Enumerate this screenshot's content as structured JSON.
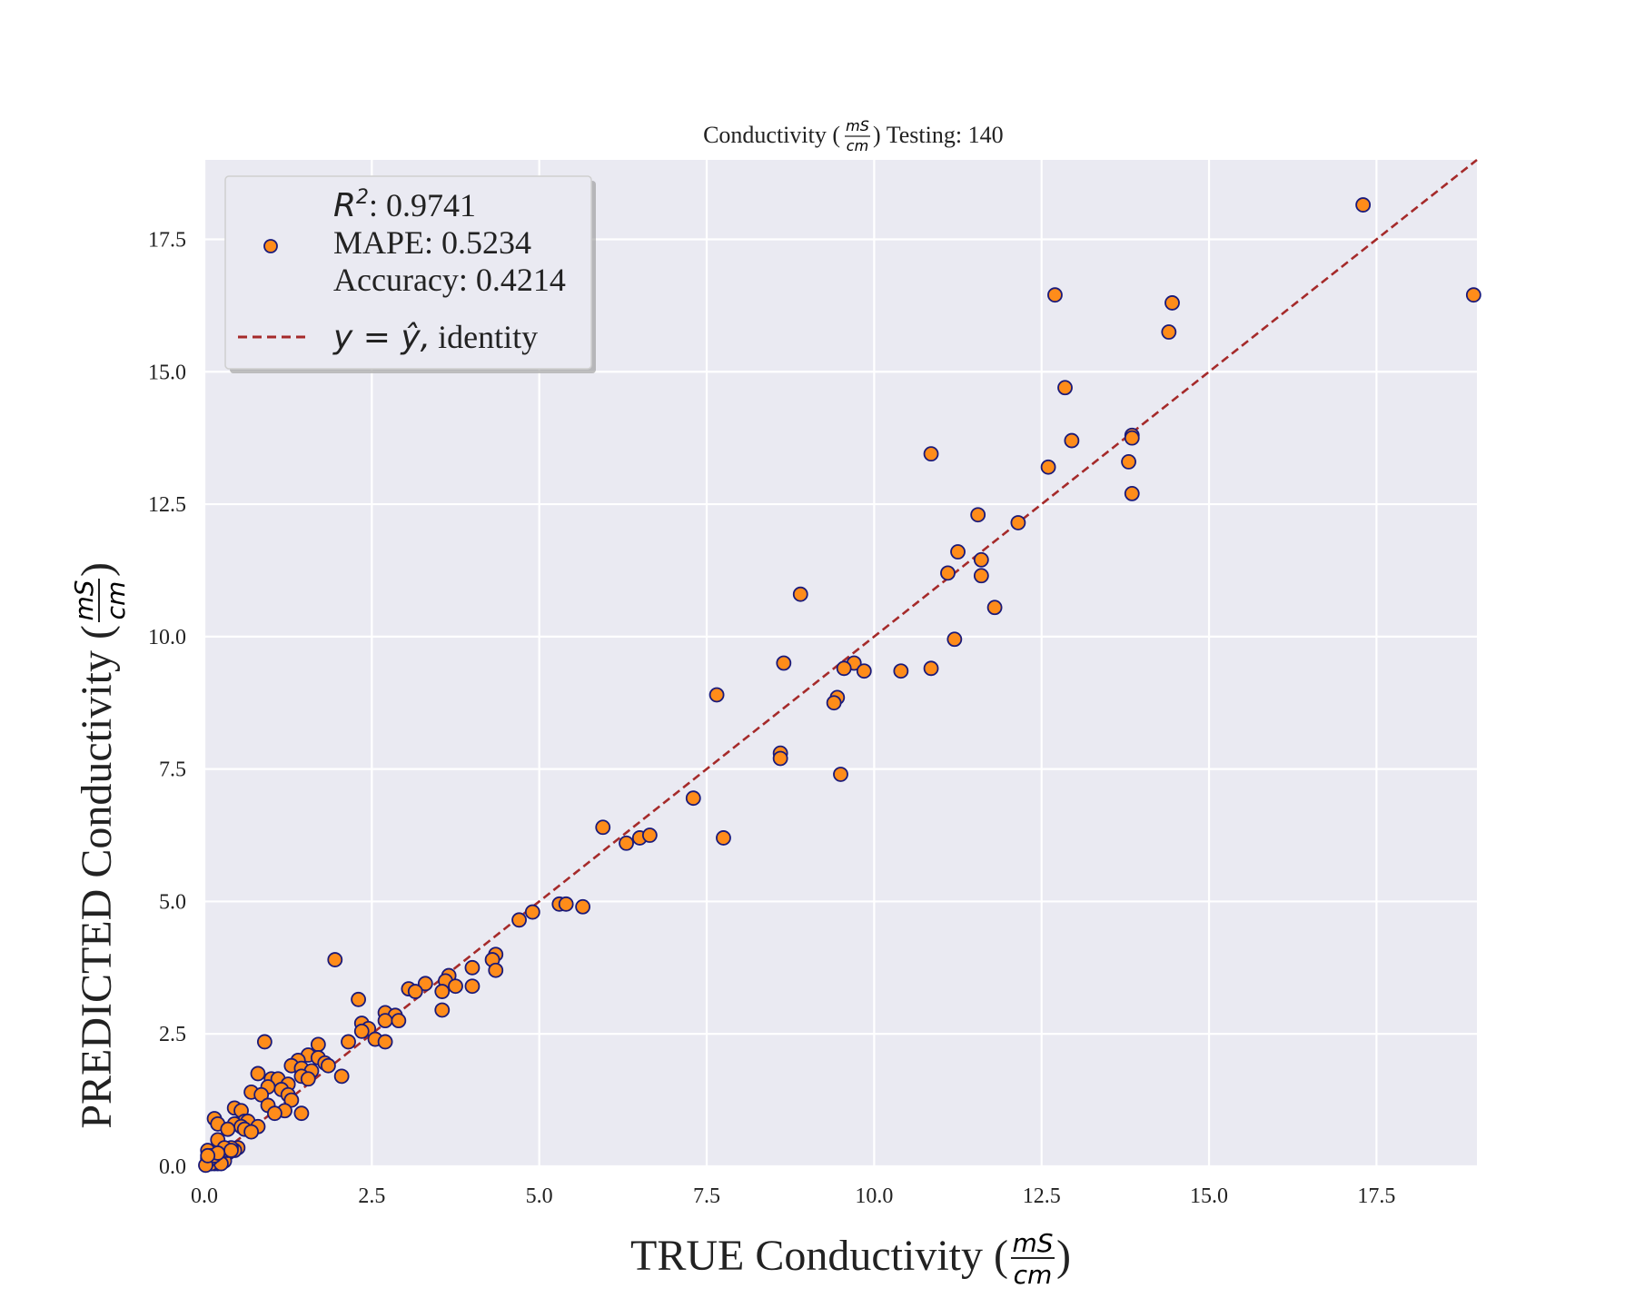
{
  "chart_data": {
    "type": "scatter",
    "title": {
      "prefix": "Conductivity (",
      "unit_num": "mS",
      "unit_den": "cm",
      "suffix": ") Testing: 140"
    },
    "xlabel": {
      "prefix": "TRUE Conductivity (",
      "unit_num": "mS",
      "unit_den": "cm",
      "suffix": ")"
    },
    "ylabel": {
      "prefix": "PREDICTED Conductivity (",
      "unit_num": "mS",
      "unit_den": "cm",
      "suffix": ")"
    },
    "xlim": [
      0,
      19.0
    ],
    "ylim": [
      0,
      19.0
    ],
    "xticks": [
      "0.0",
      "2.5",
      "5.0",
      "7.5",
      "10.0",
      "12.5",
      "15.0",
      "17.5"
    ],
    "yticks": [
      "0.0",
      "2.5",
      "5.0",
      "7.5",
      "10.0",
      "12.5",
      "15.0",
      "17.5"
    ],
    "grid": true,
    "legend": {
      "placement": "top-left",
      "r2_symbol": "R",
      "r2_sup": "2",
      "r2_value": ": 0.9741",
      "mape": "MAPE: 0.5234",
      "accuracy": "Accuracy: 0.4214",
      "identity_math": "y = ŷ,",
      "identity_text": "identity"
    },
    "identity_line": {
      "color": "#a52a2a",
      "style": "dashed"
    },
    "marker": {
      "face": "#ff8c1a",
      "edge": "#1a1a7a"
    },
    "background": "#eaeaf2",
    "points": [
      [
        17.3,
        18.15
      ],
      [
        18.95,
        16.45
      ],
      [
        12.7,
        16.45
      ],
      [
        14.45,
        16.3
      ],
      [
        14.4,
        15.75
      ],
      [
        12.85,
        14.7
      ],
      [
        12.95,
        13.7
      ],
      [
        13.85,
        13.8
      ],
      [
        13.85,
        13.75
      ],
      [
        10.85,
        13.45
      ],
      [
        13.8,
        13.3
      ],
      [
        12.6,
        13.2
      ],
      [
        13.85,
        12.7
      ],
      [
        11.55,
        12.3
      ],
      [
        12.15,
        12.15
      ],
      [
        11.25,
        11.6
      ],
      [
        11.6,
        11.45
      ],
      [
        11.1,
        11.2
      ],
      [
        11.6,
        11.15
      ],
      [
        8.9,
        10.8
      ],
      [
        11.8,
        10.55
      ],
      [
        11.2,
        9.95
      ],
      [
        8.65,
        9.5
      ],
      [
        9.7,
        9.5
      ],
      [
        9.55,
        9.4
      ],
      [
        10.4,
        9.35
      ],
      [
        10.85,
        9.4
      ],
      [
        9.85,
        9.35
      ],
      [
        7.65,
        8.9
      ],
      [
        9.45,
        8.85
      ],
      [
        9.4,
        8.75
      ],
      [
        8.6,
        7.8
      ],
      [
        8.6,
        7.7
      ],
      [
        9.5,
        7.4
      ],
      [
        7.3,
        6.95
      ],
      [
        5.95,
        6.4
      ],
      [
        6.5,
        6.2
      ],
      [
        6.65,
        6.25
      ],
      [
        6.3,
        6.1
      ],
      [
        7.75,
        6.2
      ],
      [
        5.3,
        4.95
      ],
      [
        5.4,
        4.95
      ],
      [
        5.65,
        4.9
      ],
      [
        4.9,
        4.8
      ],
      [
        4.7,
        4.65
      ],
      [
        1.95,
        3.9
      ],
      [
        4.35,
        4.0
      ],
      [
        4.3,
        3.9
      ],
      [
        4.0,
        3.75
      ],
      [
        4.35,
        3.7
      ],
      [
        3.65,
        3.6
      ],
      [
        3.6,
        3.5
      ],
      [
        3.3,
        3.45
      ],
      [
        3.75,
        3.4
      ],
      [
        4.0,
        3.4
      ],
      [
        3.05,
        3.35
      ],
      [
        3.15,
        3.3
      ],
      [
        3.55,
        3.3
      ],
      [
        2.3,
        3.15
      ],
      [
        3.55,
        2.95
      ],
      [
        2.7,
        2.9
      ],
      [
        2.85,
        2.85
      ],
      [
        2.7,
        2.75
      ],
      [
        2.9,
        2.75
      ],
      [
        2.35,
        2.7
      ],
      [
        2.45,
        2.6
      ],
      [
        2.35,
        2.55
      ],
      [
        2.55,
        2.4
      ],
      [
        2.7,
        2.35
      ],
      [
        2.15,
        2.35
      ],
      [
        0.9,
        2.35
      ],
      [
        1.7,
        2.3
      ],
      [
        1.55,
        2.1
      ],
      [
        1.7,
        2.05
      ],
      [
        1.4,
        2.0
      ],
      [
        1.8,
        1.95
      ],
      [
        1.85,
        1.9
      ],
      [
        1.3,
        1.9
      ],
      [
        1.45,
        1.85
      ],
      [
        1.6,
        1.8
      ],
      [
        0.8,
        1.75
      ],
      [
        2.05,
        1.7
      ],
      [
        1.45,
        1.7
      ],
      [
        1.0,
        1.65
      ],
      [
        1.1,
        1.65
      ],
      [
        1.55,
        1.65
      ],
      [
        1.25,
        1.55
      ],
      [
        0.95,
        1.5
      ],
      [
        1.15,
        1.45
      ],
      [
        0.7,
        1.4
      ],
      [
        0.85,
        1.35
      ],
      [
        1.25,
        1.35
      ],
      [
        1.3,
        1.25
      ],
      [
        0.95,
        1.15
      ],
      [
        1.2,
        1.05
      ],
      [
        0.45,
        1.1
      ],
      [
        0.55,
        1.05
      ],
      [
        1.45,
        1.0
      ],
      [
        1.05,
        1.0
      ],
      [
        0.15,
        0.9
      ],
      [
        0.6,
        0.85
      ],
      [
        0.65,
        0.85
      ],
      [
        0.2,
        0.8
      ],
      [
        0.45,
        0.8
      ],
      [
        0.8,
        0.75
      ],
      [
        0.55,
        0.75
      ],
      [
        0.6,
        0.7
      ],
      [
        0.35,
        0.7
      ],
      [
        0.7,
        0.65
      ],
      [
        0.2,
        0.5
      ],
      [
        0.5,
        0.35
      ],
      [
        0.45,
        0.3
      ],
      [
        0.35,
        0.25
      ],
      [
        0.05,
        0.3
      ],
      [
        0.2,
        0.2
      ],
      [
        0.15,
        0.15
      ],
      [
        0.1,
        0.1
      ],
      [
        0.2,
        0.1
      ],
      [
        0.05,
        0.05
      ],
      [
        0.15,
        0.05
      ],
      [
        0.25,
        0.15
      ],
      [
        0.1,
        0.2
      ],
      [
        0.05,
        0.15
      ],
      [
        0.2,
        0.05
      ],
      [
        0.15,
        0.1
      ],
      [
        0.1,
        0.05
      ],
      [
        0.3,
        0.25
      ],
      [
        0.25,
        0.2
      ],
      [
        0.3,
        0.1
      ],
      [
        0.05,
        0.1
      ],
      [
        0.4,
        0.35
      ],
      [
        0.35,
        0.3
      ],
      [
        0.25,
        0.05
      ],
      [
        0.1,
        0.15
      ],
      [
        0.15,
        0.2
      ],
      [
        0.02,
        0.02
      ],
      [
        0.3,
        0.35
      ],
      [
        0.4,
        0.3
      ],
      [
        0.2,
        0.25
      ],
      [
        0.05,
        0.2
      ]
    ]
  }
}
